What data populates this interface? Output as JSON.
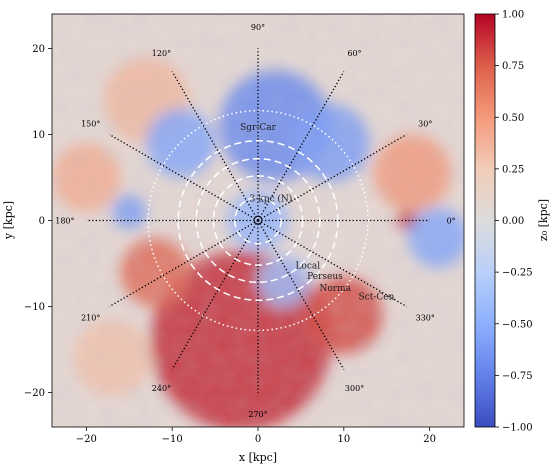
{
  "chart_data": {
    "type": "heatmap",
    "xlabel": "x [kpc]",
    "ylabel": "y [kpc]",
    "xlim": [
      -24,
      24
    ],
    "ylim": [
      -24,
      24
    ],
    "x_ticks": [
      "−20",
      "−10",
      "0",
      "10",
      "20"
    ],
    "x_tick_values": [
      -20,
      -10,
      0,
      10,
      20
    ],
    "y_ticks": [
      "−20",
      "−10",
      "0",
      "10",
      "20"
    ],
    "y_tick_values": [
      -20,
      -10,
      0,
      10,
      20
    ],
    "colorbar": {
      "label": "z₀ [kpc]",
      "range": [
        -1.0,
        1.0
      ],
      "colormap": "coolwarm",
      "ticks": [
        "1.00",
        "0.75",
        "0.50",
        "0.25",
        "0.00",
        "−0.25",
        "−0.50",
        "−0.75",
        "−1.00"
      ],
      "tick_values": [
        1.0,
        0.75,
        0.5,
        0.25,
        0.0,
        -0.25,
        -0.5,
        -0.75,
        -1.0
      ]
    },
    "angle_lines": {
      "radius_kpc": 20,
      "angles_deg": [
        0,
        30,
        60,
        90,
        120,
        150,
        180,
        210,
        240,
        270,
        300,
        330
      ],
      "labels": [
        "0°",
        "30°",
        "60°",
        "90°",
        "120°",
        "150°",
        "180°",
        "210°",
        "240°",
        "270°",
        "300°",
        "330°"
      ]
    },
    "arm_labels": [
      {
        "text": "Sgr-Car",
        "x": 0.0,
        "y": 10.5
      },
      {
        "text": "3-kpc (N)",
        "x": 1.5,
        "y": 2.2
      },
      {
        "text": "Local",
        "x": 5.8,
        "y": -5.6
      },
      {
        "text": "Perseus",
        "x": 7.8,
        "y": -6.8
      },
      {
        "text": "Norma",
        "x": 9.0,
        "y": -8.2
      },
      {
        "text": "Sct-Cen",
        "x": 13.8,
        "y": -9.2
      }
    ],
    "circles_kpc": [
      {
        "r": 2.7,
        "style": "dashed"
      },
      {
        "r": 5.2,
        "style": "dashed"
      },
      {
        "r": 7.2,
        "style": "dashed"
      },
      {
        "r": 9.3,
        "style": "dashed"
      },
      {
        "r": 12.8,
        "style": "dotted"
      }
    ],
    "features": [
      {
        "name": "outer-south-warp",
        "sign": "positive",
        "value": 0.9,
        "cx": -2.0,
        "cy": -14.0,
        "r": 10.5
      },
      {
        "name": "east-warp-arm",
        "sign": "positive",
        "value": 0.8,
        "cx": 10.0,
        "cy": -11.0,
        "r": 4.5
      },
      {
        "name": "west-arc",
        "sign": "positive",
        "value": 0.7,
        "cx": -12.0,
        "cy": -6.0,
        "r": 4.0
      },
      {
        "name": "right-hot-spot",
        "sign": "positive",
        "value": 0.95,
        "cx": 17.5,
        "cy": 0.0,
        "r": 1.2
      },
      {
        "name": "upper-right-band",
        "sign": "positive",
        "value": 0.5,
        "cx": 18.0,
        "cy": 5.5,
        "r": 4.5
      },
      {
        "name": "upper-left-band",
        "sign": "positive",
        "value": 0.35,
        "cx": -13.0,
        "cy": 14.0,
        "r": 5.0
      },
      {
        "name": "far-left-band",
        "sign": "positive",
        "value": 0.4,
        "cx": -20.0,
        "cy": 5.0,
        "r": 4.0
      },
      {
        "name": "lower-left-tint",
        "sign": "positive",
        "value": 0.3,
        "cx": -17.0,
        "cy": -16.0,
        "r": 4.5
      },
      {
        "name": "north-blue-arc",
        "sign": "negative",
        "value": -0.7,
        "cx": 2.0,
        "cy": 11.0,
        "r": 6.5
      },
      {
        "name": "northeast-blue",
        "sign": "negative",
        "value": -0.6,
        "cx": 8.5,
        "cy": 9.0,
        "r": 4.5
      },
      {
        "name": "northwest-blue",
        "sign": "negative",
        "value": -0.55,
        "cx": -9.0,
        "cy": 9.0,
        "r": 4.0
      },
      {
        "name": "center-blue",
        "sign": "negative",
        "value": -0.45,
        "cx": 0.0,
        "cy": 0.0,
        "r": 3.5
      },
      {
        "name": "east-blue-band",
        "sign": "negative",
        "value": -0.55,
        "cx": 21.0,
        "cy": -2.0,
        "r": 3.5
      },
      {
        "name": "west-blue-spot",
        "sign": "negative",
        "value": -0.6,
        "cx": -15.0,
        "cy": 1.0,
        "r": 2.0
      },
      {
        "name": "inner-south-blue",
        "sign": "negative",
        "value": -0.4,
        "cx": 3.0,
        "cy": -7.0,
        "r": 3.0
      }
    ]
  }
}
